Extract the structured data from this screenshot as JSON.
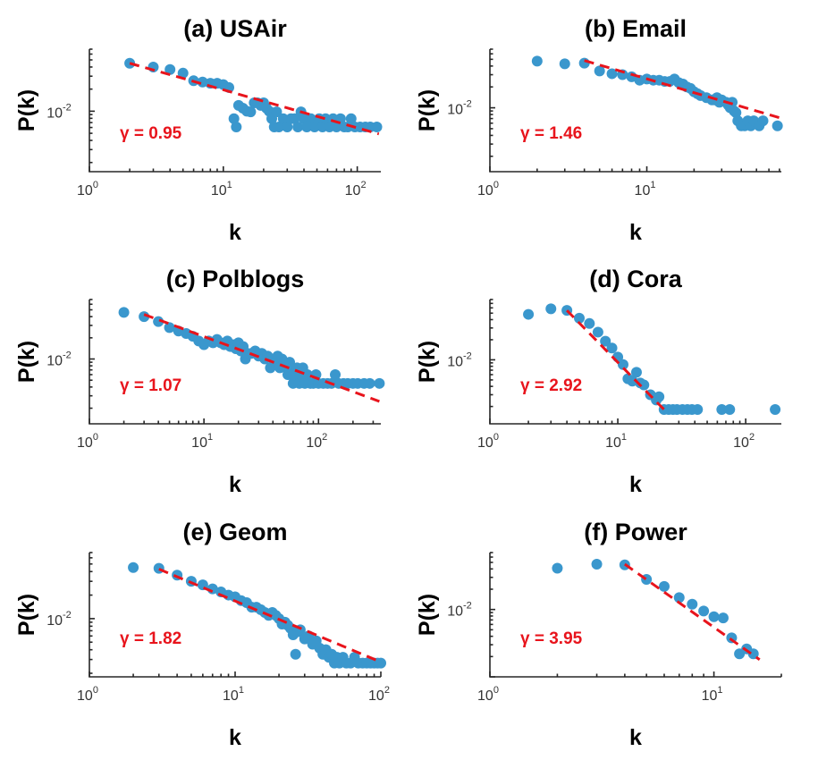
{
  "chart_data": [
    {
      "type": "scatter",
      "title": "(a) USAir",
      "xlabel": "k",
      "ylabel": "P(k)",
      "xscale": "log",
      "yscale": "log",
      "xlim": [
        1,
        150
      ],
      "ylim": [
        0.0015,
        0.07
      ],
      "xticks": [
        {
          "value": 1,
          "base": "10",
          "exp": "0"
        },
        {
          "value": 10,
          "base": "10",
          "exp": "1"
        },
        {
          "value": 100,
          "base": "10",
          "exp": "2"
        }
      ],
      "yticks": [
        {
          "value": 0.01,
          "base": "10",
          "exp": "-2"
        }
      ],
      "annotation": "γ = 0.95",
      "gamma": 0.95,
      "fit": {
        "x": [
          2,
          145
        ],
        "y": [
          0.045,
          0.0049
        ]
      },
      "points": [
        [
          2,
          0.045
        ],
        [
          3,
          0.04
        ],
        [
          4,
          0.037
        ],
        [
          5,
          0.033
        ],
        [
          6,
          0.026
        ],
        [
          7,
          0.025
        ],
        [
          8,
          0.024
        ],
        [
          9,
          0.024
        ],
        [
          10,
          0.023
        ],
        [
          11,
          0.021
        ],
        [
          12,
          0.0079
        ],
        [
          12.5,
          0.0061
        ],
        [
          13,
          0.012
        ],
        [
          14,
          0.011
        ],
        [
          15,
          0.01
        ],
        [
          16,
          0.0098
        ],
        [
          17,
          0.013
        ],
        [
          18,
          0.013
        ],
        [
          19,
          0.012
        ],
        [
          20,
          0.013
        ],
        [
          21,
          0.011
        ],
        [
          22,
          0.01
        ],
        [
          23,
          0.0079
        ],
        [
          24,
          0.0061
        ],
        [
          25,
          0.0098
        ],
        [
          26,
          0.0061
        ],
        [
          28,
          0.0079
        ],
        [
          30,
          0.0061
        ],
        [
          32,
          0.0079
        ],
        [
          34,
          0.0079
        ],
        [
          36,
          0.0061
        ],
        [
          38,
          0.0098
        ],
        [
          40,
          0.0079
        ],
        [
          42,
          0.0061
        ],
        [
          45,
          0.0079
        ],
        [
          48,
          0.0061
        ],
        [
          52,
          0.0079
        ],
        [
          55,
          0.0061
        ],
        [
          58,
          0.0079
        ],
        [
          62,
          0.0061
        ],
        [
          66,
          0.0079
        ],
        [
          70,
          0.0061
        ],
        [
          75,
          0.0079
        ],
        [
          80,
          0.0061
        ],
        [
          85,
          0.0061
        ],
        [
          90,
          0.0079
        ],
        [
          96,
          0.0061
        ],
        [
          105,
          0.0061
        ],
        [
          115,
          0.0061
        ],
        [
          125,
          0.0061
        ],
        [
          140,
          0.0061
        ]
      ]
    },
    {
      "type": "scatter",
      "title": "(b) Email",
      "xlabel": "k",
      "ylabel": "P(k)",
      "xscale": "log",
      "yscale": "log",
      "xlim": [
        1,
        72
      ],
      "ylim": [
        0.0012,
        0.07
      ],
      "xticks": [
        {
          "value": 1,
          "base": "10",
          "exp": "0"
        },
        {
          "value": 10,
          "base": "10",
          "exp": "1"
        }
      ],
      "yticks": [
        {
          "value": 0.01,
          "base": "10",
          "exp": "-2"
        }
      ],
      "annotation": "γ = 1.46",
      "gamma": 1.46,
      "fit": {
        "x": [
          4,
          70
        ],
        "y": [
          0.048,
          0.0072
        ]
      },
      "points": [
        [
          2,
          0.047
        ],
        [
          3,
          0.043
        ],
        [
          4,
          0.044
        ],
        [
          5,
          0.034
        ],
        [
          6,
          0.031
        ],
        [
          7,
          0.03
        ],
        [
          8,
          0.028
        ],
        [
          9,
          0.025
        ],
        [
          10,
          0.026
        ],
        [
          11,
          0.025
        ],
        [
          12,
          0.025
        ],
        [
          13,
          0.024
        ],
        [
          14,
          0.024
        ],
        [
          15,
          0.026
        ],
        [
          16,
          0.023
        ],
        [
          17,
          0.022
        ],
        [
          18,
          0.02
        ],
        [
          19,
          0.019
        ],
        [
          20,
          0.017
        ],
        [
          21,
          0.016
        ],
        [
          22,
          0.015
        ],
        [
          24,
          0.014
        ],
        [
          26,
          0.013
        ],
        [
          27,
          0.013
        ],
        [
          28,
          0.014
        ],
        [
          29,
          0.012
        ],
        [
          30,
          0.013
        ],
        [
          32,
          0.012
        ],
        [
          33,
          0.011
        ],
        [
          34,
          0.01
        ],
        [
          35,
          0.012
        ],
        [
          36,
          0.009
        ],
        [
          37,
          0.0085
        ],
        [
          38,
          0.0065
        ],
        [
          40,
          0.0055
        ],
        [
          42,
          0.0055
        ],
        [
          44,
          0.0065
        ],
        [
          46,
          0.0055
        ],
        [
          48,
          0.0065
        ],
        [
          52,
          0.0055
        ],
        [
          55,
          0.0065
        ],
        [
          68,
          0.0055
        ]
      ]
    },
    {
      "type": "scatter",
      "title": "(c) Polblogs",
      "xlabel": "k",
      "ylabel": "P(k)",
      "xscale": "log",
      "yscale": "log",
      "xlim": [
        1,
        350
      ],
      "ylim": [
        0.0012,
        0.07
      ],
      "xticks": [
        {
          "value": 1,
          "base": "10",
          "exp": "0"
        },
        {
          "value": 10,
          "base": "10",
          "exp": "1"
        },
        {
          "value": 100,
          "base": "10",
          "exp": "2"
        }
      ],
      "yticks": [
        {
          "value": 0.01,
          "base": "10",
          "exp": "-2"
        }
      ],
      "annotation": "γ = 1.07",
      "gamma": 1.07,
      "fit": {
        "x": [
          3,
          340
        ],
        "y": [
          0.043,
          0.0025
        ]
      },
      "points": [
        [
          2,
          0.046
        ],
        [
          3,
          0.04
        ],
        [
          4,
          0.034
        ],
        [
          5,
          0.028
        ],
        [
          6,
          0.025
        ],
        [
          7,
          0.023
        ],
        [
          8,
          0.021
        ],
        [
          9,
          0.018
        ],
        [
          10,
          0.016
        ],
        [
          11,
          0.018
        ],
        [
          12,
          0.017
        ],
        [
          13,
          0.019
        ],
        [
          14,
          0.017
        ],
        [
          15,
          0.016
        ],
        [
          16,
          0.018
        ],
        [
          17,
          0.015
        ],
        [
          18,
          0.016
        ],
        [
          19,
          0.014
        ],
        [
          20,
          0.017
        ],
        [
          21,
          0.013
        ],
        [
          22,
          0.015
        ],
        [
          23,
          0.01
        ],
        [
          24,
          0.012
        ],
        [
          26,
          0.012
        ],
        [
          28,
          0.013
        ],
        [
          30,
          0.011
        ],
        [
          32,
          0.012
        ],
        [
          34,
          0.01
        ],
        [
          36,
          0.011
        ],
        [
          38,
          0.0075
        ],
        [
          40,
          0.01
        ],
        [
          42,
          0.009
        ],
        [
          44,
          0.011
        ],
        [
          46,
          0.0075
        ],
        [
          48,
          0.01
        ],
        [
          50,
          0.009
        ],
        [
          52,
          0.0075
        ],
        [
          54,
          0.006
        ],
        [
          56,
          0.009
        ],
        [
          58,
          0.0075
        ],
        [
          60,
          0.0045
        ],
        [
          62,
          0.006
        ],
        [
          65,
          0.0075
        ],
        [
          68,
          0.0045
        ],
        [
          70,
          0.006
        ],
        [
          73,
          0.0075
        ],
        [
          76,
          0.0045
        ],
        [
          80,
          0.006
        ],
        [
          85,
          0.0045
        ],
        [
          90,
          0.0045
        ],
        [
          95,
          0.006
        ],
        [
          100,
          0.0045
        ],
        [
          110,
          0.0045
        ],
        [
          120,
          0.0045
        ],
        [
          130,
          0.0045
        ],
        [
          140,
          0.006
        ],
        [
          150,
          0.0045
        ],
        [
          165,
          0.0045
        ],
        [
          180,
          0.0045
        ],
        [
          200,
          0.0045
        ],
        [
          220,
          0.0045
        ],
        [
          250,
          0.0045
        ],
        [
          280,
          0.0045
        ],
        [
          340,
          0.0045
        ]
      ]
    },
    {
      "type": "scatter",
      "title": "(d) Cora",
      "xlabel": "k",
      "ylabel": "P(k)",
      "xscale": "log",
      "yscale": "log",
      "xlim": [
        1,
        190
      ],
      "ylim": [
        0.0011,
        0.08
      ],
      "xticks": [
        {
          "value": 1,
          "base": "10",
          "exp": "0"
        },
        {
          "value": 10,
          "base": "10",
          "exp": "1"
        },
        {
          "value": 100,
          "base": "10",
          "exp": "2"
        }
      ],
      "yticks": [
        {
          "value": 0.01,
          "base": "10",
          "exp": "-2"
        }
      ],
      "annotation": "γ = 2.92",
      "gamma": 2.92,
      "fit": {
        "x": [
          4,
          23
        ],
        "y": [
          0.055,
          0.0018
        ]
      },
      "points": [
        [
          2,
          0.048
        ],
        [
          3,
          0.058
        ],
        [
          4,
          0.055
        ],
        [
          5,
          0.042
        ],
        [
          6,
          0.035
        ],
        [
          7,
          0.026
        ],
        [
          8,
          0.019
        ],
        [
          9,
          0.015
        ],
        [
          10,
          0.011
        ],
        [
          11,
          0.0085
        ],
        [
          12,
          0.0052
        ],
        [
          13,
          0.0048
        ],
        [
          14,
          0.0065
        ],
        [
          15,
          0.0045
        ],
        [
          16,
          0.0042
        ],
        [
          18,
          0.003
        ],
        [
          20,
          0.0025
        ],
        [
          21,
          0.0028
        ],
        [
          23,
          0.0018
        ],
        [
          25,
          0.0018
        ],
        [
          27,
          0.0018
        ],
        [
          29,
          0.0018
        ],
        [
          32,
          0.0018
        ],
        [
          35,
          0.0018
        ],
        [
          38,
          0.0018
        ],
        [
          42,
          0.0018
        ],
        [
          65,
          0.0018
        ],
        [
          75,
          0.0018
        ],
        [
          170,
          0.0018
        ]
      ]
    },
    {
      "type": "scatter",
      "title": "(e) Geom",
      "xlabel": "k",
      "ylabel": "P(k)",
      "xscale": "log",
      "yscale": "log",
      "xlim": [
        1,
        100
      ],
      "ylim": [
        0.0018,
        0.07
      ],
      "xticks": [
        {
          "value": 1,
          "base": "10",
          "exp": "0"
        },
        {
          "value": 10,
          "base": "10",
          "exp": "1"
        },
        {
          "value": 100,
          "base": "10",
          "exp": "2"
        }
      ],
      "yticks": [
        {
          "value": 0.01,
          "base": "10",
          "exp": "-2"
        }
      ],
      "annotation": "γ = 1.82",
      "gamma": 1.82,
      "fit": {
        "x": [
          3,
          95
        ],
        "y": [
          0.043,
          0.0029
        ]
      },
      "points": [
        [
          2,
          0.045
        ],
        [
          3,
          0.044
        ],
        [
          4,
          0.036
        ],
        [
          5,
          0.03
        ],
        [
          6,
          0.027
        ],
        [
          7,
          0.024
        ],
        [
          8,
          0.022
        ],
        [
          9,
          0.02
        ],
        [
          10,
          0.019
        ],
        [
          11,
          0.017
        ],
        [
          12,
          0.016
        ],
        [
          13,
          0.014
        ],
        [
          14,
          0.014
        ],
        [
          15,
          0.013
        ],
        [
          16,
          0.012
        ],
        [
          17,
          0.011
        ],
        [
          18,
          0.012
        ],
        [
          19,
          0.011
        ],
        [
          20,
          0.01
        ],
        [
          21,
          0.0085
        ],
        [
          22,
          0.009
        ],
        [
          23,
          0.0082
        ],
        [
          24,
          0.0075
        ],
        [
          25,
          0.0062
        ],
        [
          26,
          0.0035
        ],
        [
          27,
          0.0068
        ],
        [
          28,
          0.0072
        ],
        [
          30,
          0.0055
        ],
        [
          32,
          0.006
        ],
        [
          34,
          0.0047
        ],
        [
          36,
          0.0052
        ],
        [
          38,
          0.0042
        ],
        [
          40,
          0.0035
        ],
        [
          42,
          0.004
        ],
        [
          44,
          0.0032
        ],
        [
          46,
          0.0035
        ],
        [
          48,
          0.0027
        ],
        [
          50,
          0.0032
        ],
        [
          52,
          0.0027
        ],
        [
          55,
          0.0032
        ],
        [
          58,
          0.0027
        ],
        [
          62,
          0.0027
        ],
        [
          66,
          0.0032
        ],
        [
          70,
          0.0027
        ],
        [
          75,
          0.0027
        ],
        [
          80,
          0.0027
        ],
        [
          85,
          0.0027
        ],
        [
          90,
          0.0027
        ],
        [
          95,
          0.0027
        ],
        [
          100,
          0.0027
        ]
      ]
    },
    {
      "type": "scatter",
      "title": "(f) Power",
      "xlabel": "k",
      "ylabel": "P(k)",
      "xscale": "log",
      "yscale": "log",
      "xlim": [
        1,
        20
      ],
      "ylim": [
        0.001,
        0.07
      ],
      "xticks": [
        {
          "value": 1,
          "base": "10",
          "exp": "0"
        },
        {
          "value": 10,
          "base": "10",
          "exp": "1"
        }
      ],
      "yticks": [
        {
          "value": 0.01,
          "base": "10",
          "exp": "-2"
        }
      ],
      "annotation": "γ = 3.95",
      "gamma": 3.95,
      "fit": {
        "x": [
          4,
          16
        ],
        "y": [
          0.047,
          0.0018
        ]
      },
      "points": [
        [
          2,
          0.041
        ],
        [
          3,
          0.047
        ],
        [
          4,
          0.046
        ],
        [
          5,
          0.028
        ],
        [
          6,
          0.022
        ],
        [
          7,
          0.015
        ],
        [
          8,
          0.012
        ],
        [
          9,
          0.0095
        ],
        [
          10,
          0.0078
        ],
        [
          11,
          0.0075
        ],
        [
          12,
          0.0038
        ],
        [
          13,
          0.0022
        ],
        [
          14,
          0.0026
        ],
        [
          15,
          0.0022
        ]
      ]
    }
  ]
}
